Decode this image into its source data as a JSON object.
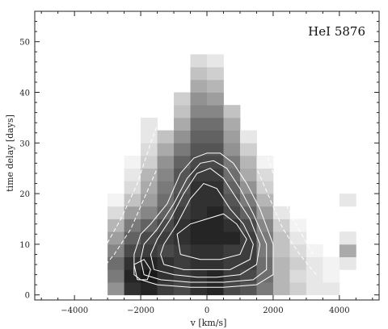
{
  "chart_data": {
    "type": "heatmap",
    "annotation": "HeI 5876",
    "xlabel": "v [km/s]",
    "ylabel": "time delay [days]",
    "xlim": [
      -5200,
      5200
    ],
    "ylim": [
      -1,
      56
    ],
    "xticks": [
      -4000,
      -2000,
      0,
      2000,
      4000
    ],
    "xtick_labels": [
      "−4000",
      "−2000",
      "0",
      "2000",
      "4000"
    ],
    "yticks": [
      0,
      10,
      20,
      30,
      40,
      50
    ],
    "ytick_labels": [
      "0",
      "10",
      "20",
      "30",
      "40",
      "50"
    ],
    "grid": false,
    "cell": {
      "dv": 500,
      "dt": 2.5
    },
    "v_centers": [
      -2750,
      -2250,
      -1750,
      -1250,
      -750,
      -250,
      250,
      750,
      1250,
      1750,
      2250,
      2750,
      3250,
      3750,
      4250
    ],
    "t_centers": [
      1.25,
      3.75,
      6.25,
      8.75,
      11.25,
      13.75,
      16.25,
      18.75,
      21.25,
      23.75,
      26.25,
      28.75,
      31.25,
      33.75,
      36.25,
      38.75,
      41.25,
      43.75,
      46.25
    ],
    "intensity": [
      [
        0.45,
        0.85,
        0.9,
        0.8,
        0.75,
        0.85,
        0.9,
        0.75,
        0.7,
        0.55,
        0.3,
        0.2,
        0.1,
        0.1,
        0.0
      ],
      [
        0.55,
        0.9,
        0.95,
        0.85,
        0.8,
        0.85,
        0.9,
        0.8,
        0.75,
        0.6,
        0.3,
        0.15,
        0.1,
        0.05,
        0.0
      ],
      [
        0.6,
        0.85,
        0.9,
        0.85,
        0.8,
        0.85,
        0.85,
        0.8,
        0.8,
        0.6,
        0.3,
        0.2,
        0.1,
        0.05,
        0.1
      ],
      [
        0.5,
        0.75,
        0.8,
        0.75,
        0.8,
        0.85,
        0.85,
        0.8,
        0.8,
        0.55,
        0.25,
        0.15,
        0.05,
        0.0,
        0.35
      ],
      [
        0.4,
        0.65,
        0.75,
        0.8,
        0.85,
        0.9,
        0.9,
        0.9,
        0.8,
        0.55,
        0.25,
        0.1,
        0.0,
        0.0,
        0.1
      ],
      [
        0.3,
        0.55,
        0.65,
        0.75,
        0.85,
        0.9,
        0.9,
        0.85,
        0.75,
        0.5,
        0.2,
        0.05,
        0.0,
        0.0,
        0.0
      ],
      [
        0.15,
        0.4,
        0.5,
        0.65,
        0.8,
        0.85,
        0.9,
        0.75,
        0.65,
        0.4,
        0.1,
        0.0,
        0.0,
        0.0,
        0.0
      ],
      [
        0.05,
        0.25,
        0.4,
        0.6,
        0.75,
        0.85,
        0.85,
        0.7,
        0.55,
        0.3,
        0.0,
        0.0,
        0.0,
        0.0,
        0.1
      ],
      [
        0.0,
        0.15,
        0.35,
        0.55,
        0.7,
        0.85,
        0.85,
        0.65,
        0.45,
        0.2,
        0.0,
        0.0,
        0.0,
        0.0,
        0.0
      ],
      [
        0.0,
        0.1,
        0.3,
        0.5,
        0.7,
        0.8,
        0.8,
        0.6,
        0.35,
        0.15,
        0.0,
        0.0,
        0.0,
        0.0,
        0.0
      ],
      [
        0.0,
        0.05,
        0.2,
        0.45,
        0.65,
        0.75,
        0.75,
        0.55,
        0.3,
        0.05,
        0.0,
        0.0,
        0.0,
        0.0,
        0.0
      ],
      [
        0.0,
        0.0,
        0.15,
        0.35,
        0.55,
        0.7,
        0.7,
        0.45,
        0.2,
        0.0,
        0.0,
        0.0,
        0.0,
        0.0,
        0.0
      ],
      [
        0.0,
        0.0,
        0.1,
        0.25,
        0.45,
        0.65,
        0.65,
        0.4,
        0.1,
        0.0,
        0.0,
        0.0,
        0.0,
        0.0,
        0.0
      ],
      [
        0.0,
        0.0,
        0.1,
        0.0,
        0.35,
        0.6,
        0.6,
        0.35,
        0.0,
        0.0,
        0.0,
        0.0,
        0.0,
        0.0,
        0.0
      ],
      [
        0.0,
        0.0,
        0.0,
        0.0,
        0.25,
        0.5,
        0.5,
        0.25,
        0.0,
        0.0,
        0.0,
        0.0,
        0.0,
        0.0,
        0.0
      ],
      [
        0.0,
        0.0,
        0.0,
        0.0,
        0.2,
        0.45,
        0.4,
        0.0,
        0.0,
        0.0,
        0.0,
        0.0,
        0.0,
        0.0,
        0.0
      ],
      [
        0.0,
        0.0,
        0.0,
        0.0,
        0.0,
        0.35,
        0.3,
        0.0,
        0.0,
        0.0,
        0.0,
        0.0,
        0.0,
        0.0,
        0.0
      ],
      [
        0.0,
        0.0,
        0.0,
        0.0,
        0.0,
        0.25,
        0.2,
        0.0,
        0.0,
        0.0,
        0.0,
        0.0,
        0.0,
        0.0,
        0.0
      ],
      [
        0.0,
        0.0,
        0.0,
        0.0,
        0.0,
        0.15,
        0.1,
        0.0,
        0.0,
        0.0,
        0.0,
        0.0,
        0.0,
        0.0,
        0.0
      ]
    ],
    "contours": [
      [
        [
          -2000,
          3
        ],
        [
          -1500,
          2
        ],
        [
          -500,
          1.5
        ],
        [
          500,
          1.5
        ],
        [
          1500,
          2
        ],
        [
          2000,
          4
        ],
        [
          2000,
          10
        ],
        [
          1600,
          17
        ],
        [
          1200,
          22
        ],
        [
          800,
          26
        ],
        [
          400,
          28
        ],
        [
          0,
          28
        ],
        [
          -400,
          27
        ],
        [
          -800,
          24
        ],
        [
          -1200,
          18
        ],
        [
          -1700,
          14
        ],
        [
          -2000,
          12
        ],
        [
          -2200,
          8
        ],
        [
          -2200,
          4
        ],
        [
          -2000,
          3
        ]
      ],
      [
        [
          -1900,
          4
        ],
        [
          -1400,
          3
        ],
        [
          -500,
          2.5
        ],
        [
          500,
          2.5
        ],
        [
          1400,
          3
        ],
        [
          1800,
          5
        ],
        [
          1800,
          10
        ],
        [
          1400,
          16
        ],
        [
          1000,
          21
        ],
        [
          600,
          25
        ],
        [
          200,
          26.5
        ],
        [
          -200,
          26
        ],
        [
          -600,
          23
        ],
        [
          -1000,
          18
        ],
        [
          -1500,
          13
        ],
        [
          -1900,
          10
        ],
        [
          -2000,
          7
        ],
        [
          -1900,
          4
        ]
      ],
      [
        [
          -1600,
          5
        ],
        [
          -1000,
          4
        ],
        [
          -300,
          3.5
        ],
        [
          300,
          3.5
        ],
        [
          1000,
          4
        ],
        [
          1500,
          6
        ],
        [
          1600,
          10
        ],
        [
          1300,
          15
        ],
        [
          900,
          19
        ],
        [
          500,
          23
        ],
        [
          100,
          25
        ],
        [
          -300,
          24
        ],
        [
          -700,
          20
        ],
        [
          -1100,
          15
        ],
        [
          -1500,
          11
        ],
        [
          -1700,
          8
        ],
        [
          -1600,
          5
        ]
      ],
      [
        [
          -1300,
          6
        ],
        [
          -700,
          5
        ],
        [
          0,
          5
        ],
        [
          700,
          5
        ],
        [
          1300,
          7
        ],
        [
          1400,
          10
        ],
        [
          1100,
          14
        ],
        [
          700,
          17
        ],
        [
          300,
          21
        ],
        [
          -100,
          22
        ],
        [
          -500,
          19
        ],
        [
          -900,
          14
        ],
        [
          -1300,
          10
        ],
        [
          -1400,
          8
        ],
        [
          -1300,
          6
        ]
      ],
      [
        [
          -800,
          8
        ],
        [
          -200,
          7
        ],
        [
          400,
          7
        ],
        [
          1000,
          8
        ],
        [
          1200,
          11
        ],
        [
          900,
          14
        ],
        [
          500,
          16
        ],
        [
          0,
          15
        ],
        [
          -500,
          14
        ],
        [
          -900,
          12
        ],
        [
          -800,
          8
        ]
      ],
      [
        [
          -2100,
          3
        ],
        [
          -1800,
          3
        ],
        [
          -1700,
          5
        ],
        [
          -1900,
          7
        ],
        [
          -2200,
          6
        ],
        [
          -2100,
          3
        ]
      ]
    ],
    "envelopes": [
      [
        [
          -3200,
          8
        ],
        [
          -2600,
          15
        ],
        [
          -2100,
          22
        ],
        [
          -1700,
          30
        ],
        [
          -1300,
          37
        ],
        [
          -900,
          44
        ]
      ],
      [
        [
          -3300,
          4
        ],
        [
          -2800,
          8
        ],
        [
          -2300,
          13
        ],
        [
          -1900,
          19
        ],
        [
          -1500,
          25
        ]
      ],
      [
        [
          3200,
          8
        ],
        [
          2600,
          15
        ],
        [
          2100,
          22
        ],
        [
          1700,
          30
        ],
        [
          1300,
          37
        ],
        [
          900,
          44
        ]
      ],
      [
        [
          3300,
          4
        ],
        [
          2800,
          8
        ],
        [
          2300,
          13
        ],
        [
          1900,
          19
        ],
        [
          1500,
          25
        ]
      ]
    ]
  }
}
